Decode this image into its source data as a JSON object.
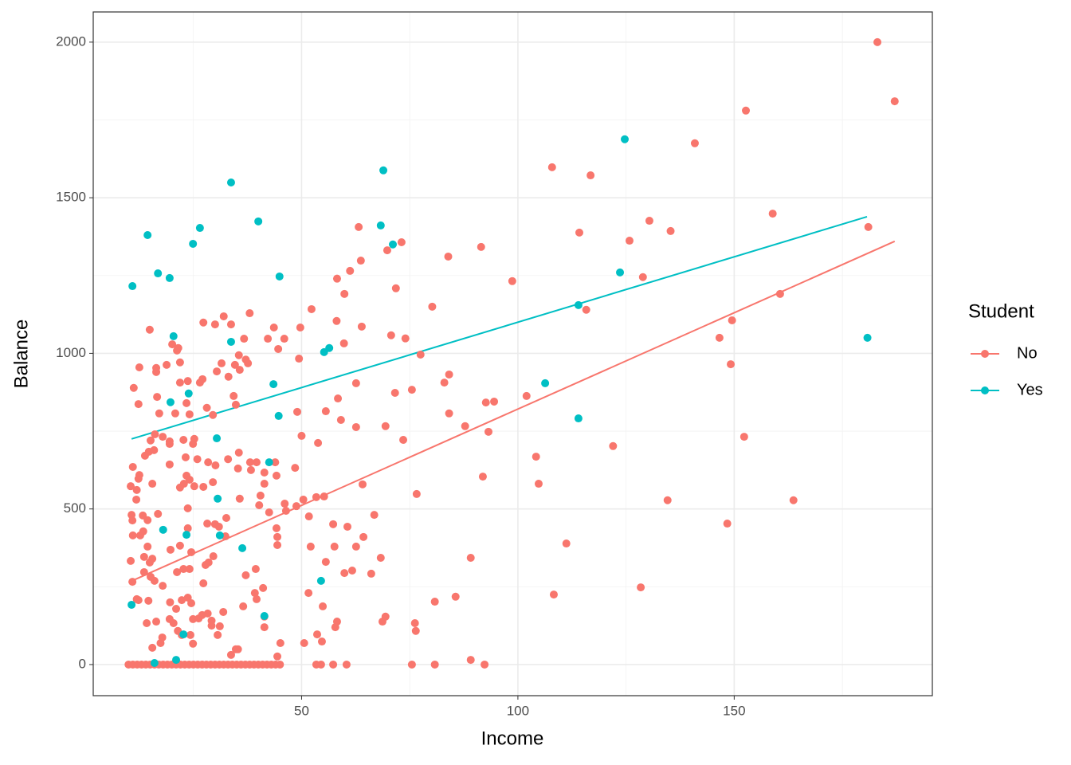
{
  "chart_data": {
    "type": "scatter",
    "x_label": "Income",
    "y_label": "Balance",
    "legend_title": "Student",
    "xlim": [
      1.84,
      195.8
    ],
    "ylim": [
      -100,
      2097
    ],
    "xticks": [
      50,
      100,
      150
    ],
    "yticks": [
      0,
      500,
      1000,
      1500,
      2000
    ],
    "minor_xticks": [
      25,
      75,
      125,
      175
    ],
    "minor_yticks": [
      250,
      750,
      1250,
      1750
    ],
    "grid": true,
    "legend_position": "right",
    "series": [
      {
        "name": "No",
        "color": "#F8766D",
        "x": [
          183.1,
          187.1,
          152.7,
          140.9,
          107.9,
          116.8,
          158.9,
          130.4,
          135.3,
          114.2,
          125.8,
          181,
          160.6,
          128.9,
          115.8,
          149.5,
          146.6,
          149.2,
          152.3,
          122,
          134.6,
          163.7,
          148.4,
          111.2,
          108.3,
          128.4,
          98.7,
          91.5,
          83.9,
          80.2,
          84.1,
          83,
          84.1,
          92.6,
          94.5,
          93.2,
          87.8,
          102,
          104.2,
          104.8,
          91.9,
          89.1,
          85.6,
          80.8,
          76.2,
          76.4,
          80.8,
          75.5,
          89.1,
          92.3,
          63.2,
          63.7,
          69.8,
          73.1,
          71.8,
          59.9,
          58.2,
          61.2,
          52.3,
          58.1,
          59.8,
          62.6,
          63.9,
          70.7,
          74,
          77.5,
          71.6,
          75.5,
          73.5,
          58.4,
          55.6,
          59.1,
          62.6,
          69.4,
          53.8,
          76.6,
          64.1,
          64.3,
          66.8,
          68.3,
          66.1,
          60.6,
          57.3,
          62.6,
          57.6,
          52.1,
          55.6,
          61.7,
          59.9,
          69.4,
          68.7,
          58.2,
          57.8,
          54.9,
          51.6,
          53.6,
          54.7,
          50.6,
          53.4,
          54.5,
          57.3,
          60.4,
          51.7,
          50.4,
          53.4,
          55.2,
          48.8,
          46.4,
          46.1,
          44.2,
          44.4,
          44.4,
          42.5,
          40.2,
          40.5,
          41.4,
          44.2,
          43.9,
          41.4,
          39.6,
          38.1,
          38.3,
          48.5,
          50,
          49,
          49.4,
          49.7,
          43.6,
          42.2,
          46,
          44.6,
          38,
          36.7,
          37.1,
          37.6,
          35.5,
          34.6,
          35.7,
          32,
          33.7,
          30,
          27.3,
          31.5,
          30.4,
          33.1,
          34.3,
          34.8,
          29.5,
          28.1,
          26.5,
          27.1,
          23.7,
          21.9,
          23.4,
          24.1,
          35.5,
          33,
          35.3,
          30.1,
          28.4,
          25.9,
          23.2,
          23.4,
          24.1,
          25.2,
          22.8,
          29.5,
          27.3,
          35.7,
          32.6,
          30,
          30.9,
          28.2,
          32.4,
          29.6,
          28.5,
          27.8,
          24.1,
          24.5,
          23.7,
          21.9,
          21.2,
          27.3,
          25.2,
          24.9,
          22.7,
          20.8,
          21.9,
          21.2,
          21.5,
          20.1,
          18.8,
          16.4,
          16.4,
          16.6,
          17.1,
          14.9,
          12.5,
          11.2,
          12.3,
          19.5,
          19.5,
          17.9,
          16.1,
          15.9,
          14.7,
          13.8,
          15.1,
          19.5,
          21.9,
          23.7,
          19.7,
          22.7,
          14.4,
          13.6,
          15.5,
          14.9,
          13.6,
          15.1,
          16,
          17.9,
          12.3,
          14.6,
          19.6,
          21,
          22.3,
          23.7,
          24.5,
          27,
          28.3,
          26.2,
          29.2,
          31.9,
          29.2,
          24.9,
          19.5,
          20.4,
          14.2,
          16.4,
          15.5,
          17.4,
          17.8,
          21.4,
          22.3,
          24.3,
          24.9,
          30.6,
          33.7,
          34.8,
          35.3,
          41.4,
          41.4,
          39.2,
          39.6,
          36.5,
          41.1,
          39.4,
          37.1,
          31.1,
          45.1,
          44.4,
          10.5,
          11,
          10.7,
          10.9,
          11,
          12.3,
          12.5,
          11.9,
          11.8,
          13.3,
          14.4,
          12.7,
          13.4,
          10.5,
          10.9,
          11.9,
          15.5,
          16.8,
          10,
          11,
          12,
          13,
          14,
          15,
          16,
          17,
          18,
          19,
          20,
          21,
          22,
          23,
          24,
          25,
          26,
          27,
          28,
          29,
          30,
          31,
          32,
          33,
          34,
          35,
          36,
          37,
          38,
          39,
          40,
          41,
          42,
          43,
          44,
          45
        ],
        "values": [
          2000,
          1810,
          1780,
          1675,
          1598,
          1572,
          1449,
          1426,
          1393,
          1388,
          1362,
          1406,
          1191,
          1245,
          1140,
          1106,
          1050,
          965,
          732,
          702,
          528,
          528,
          453,
          389,
          225,
          248,
          1232,
          1342,
          1311,
          1150,
          932,
          906,
          807,
          842,
          845,
          748,
          766,
          863,
          668,
          581,
          604,
          343,
          218,
          202,
          133,
          108,
          0,
          0,
          15,
          0,
          1406,
          1298,
          1331,
          1357,
          1209,
          1191,
          1240,
          1265,
          1142,
          1104,
          1032,
          904,
          1086,
          1058,
          1048,
          996,
          873,
          883,
          722,
          855,
          814,
          786,
          763,
          766,
          712,
          548,
          579,
          410,
          481,
          343,
          292,
          443,
          451,
          379,
          379,
          379,
          330,
          302,
          294,
          154,
          138,
          138,
          120,
          187,
          230,
          97,
          74,
          69,
          0,
          0,
          0,
          0,
          476,
          530,
          538,
          540,
          509,
          494,
          517,
          438,
          410,
          384,
          489,
          512,
          543,
          581,
          607,
          650,
          617,
          650,
          650,
          625,
          632,
          735,
          812,
          983,
          1083,
          1083,
          1047,
          1047,
          1014,
          1129,
          1047,
          980,
          968,
          994,
          963,
          947,
          1119,
          1093,
          1093,
          1099,
          968,
          942,
          925,
          863,
          835,
          802,
          825,
          906,
          917,
          911,
          906,
          840,
          804,
          681,
          660,
          630,
          640,
          650,
          660,
          666,
          607,
          594,
          573,
          581,
          586,
          571,
          533,
          471,
          451,
          443,
          453,
          412,
          348,
          328,
          320,
          307,
          361,
          502,
          382,
          297,
          261,
          725,
          709,
          722,
          807,
          971,
          1009,
          1017,
          1029,
          963,
          953,
          940,
          860,
          807,
          1076,
          955,
          889,
          837,
          717,
          709,
          732,
          740,
          689,
          684,
          671,
          720,
          643,
          569,
          438,
          369,
          307,
          379,
          346,
          340,
          328,
          297,
          282,
          269,
          253,
          207,
          205,
          200,
          179,
          207,
          215,
          197,
          159,
          164,
          148,
          141,
          169,
          125,
          146,
          146,
          133,
          133,
          138,
          54,
          69,
          87,
          108,
          95,
          95,
          67,
          95,
          31,
          49,
          49,
          120,
          154,
          230,
          210,
          187,
          246,
          307,
          287,
          123,
          69,
          26,
          573,
          635,
          481,
          463,
          415,
          597,
          609,
          561,
          530,
          479,
          464,
          415,
          428,
          333,
          266,
          210,
          581,
          484,
          0,
          0,
          0,
          0,
          0,
          0,
          0,
          0,
          0,
          0,
          0,
          0,
          0,
          0,
          0,
          0,
          0,
          0,
          0,
          0,
          0,
          0,
          0,
          0,
          0,
          0,
          0,
          0,
          0,
          0,
          0,
          0,
          0,
          0,
          0,
          0
        ],
        "fit": {
          "x": [
            10,
            187.1
          ],
          "values": [
            264,
            1360
          ]
        }
      },
      {
        "name": "Yes",
        "color": "#00BFC4",
        "x": [
          10.9,
          14.4,
          16.8,
          19.5,
          26.5,
          24.9,
          33.7,
          40,
          44.9,
          68.9,
          68.3,
          71.1,
          124.7,
          123.6,
          114,
          106.3,
          114,
          180.8,
          20.4,
          19.7,
          23.9,
          30.4,
          30.6,
          33.7,
          43.5,
          44.7,
          56.4,
          55.2,
          42.5,
          18,
          23.4,
          31.1,
          36.3,
          54.5,
          41.4,
          22.7,
          21,
          16,
          10.7
        ],
        "values": [
          1216,
          1380,
          1257,
          1242,
          1403,
          1352,
          1549,
          1424,
          1247,
          1588,
          1411,
          1350,
          1688,
          1260,
          1155,
          904,
          791,
          1050,
          1055,
          843,
          871,
          727,
          533,
          1037,
          901,
          799,
          1017,
          1004,
          650,
          433,
          417,
          415,
          374,
          269,
          156,
          97,
          15,
          5,
          192
        ],
        "fit": {
          "x": [
            10.7,
            180.7
          ],
          "values": [
            725,
            1439
          ]
        }
      }
    ]
  }
}
